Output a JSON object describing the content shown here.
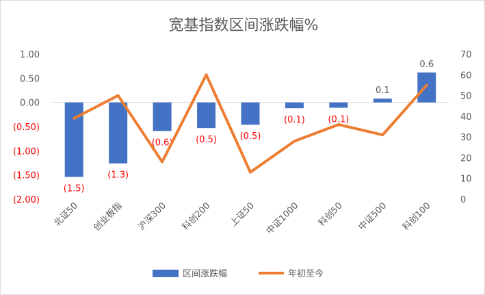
{
  "colors": {
    "bar": "#4472c4",
    "line": "#ed7d31",
    "negative_label": "#ff0000",
    "text": "#595959",
    "axis": "#d9d9d9"
  },
  "chart_data": {
    "type": "bar+line",
    "title": "宽基指数区间涨跌幅%",
    "categories": [
      "北证50",
      "创业板指",
      "沪深300",
      "科创200",
      "上证50",
      "中证1000",
      "科创50",
      "中证500",
      "科创100"
    ],
    "series": [
      {
        "name": "区间涨跌幅",
        "type": "bar",
        "axis": "left",
        "values": [
          -1.54,
          -1.26,
          -0.59,
          -0.53,
          -0.46,
          -0.12,
          -0.11,
          0.08,
          0.62
        ],
        "labels": [
          "(1.5)",
          "(1.3)",
          "(0.6)",
          "(0.5)",
          "(0.5)",
          "(0.1)",
          "(0.1)",
          "0.1",
          "0.6"
        ]
      },
      {
        "name": "年初至今",
        "type": "line",
        "axis": "right",
        "values": [
          39,
          50,
          18,
          60,
          13,
          28,
          36,
          31,
          55
        ]
      }
    ],
    "left_axis": {
      "min": -2,
      "max": 1,
      "ticks": [
        1,
        0.5,
        0,
        -0.5,
        -1,
        -1.5,
        -2
      ],
      "tick_labels": [
        "1.00",
        "0.50",
        "0.00",
        "(0.50)",
        "(1.00)",
        "(1.50)",
        "(2.00)"
      ]
    },
    "right_axis": {
      "min": 0,
      "max": 70,
      "ticks": [
        70,
        60,
        50,
        40,
        30,
        20,
        10,
        0
      ],
      "tick_labels": [
        "70",
        "60",
        "50",
        "40",
        "30",
        "20",
        "10",
        "0"
      ]
    },
    "legend_position": "bottom",
    "grid": false
  }
}
